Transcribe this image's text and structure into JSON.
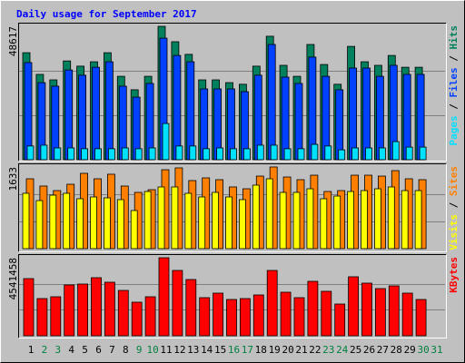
{
  "legend_separator": " / ",
  "chart_data": [
    {
      "type": "bar",
      "title": "Daily usage for September 2017",
      "ylim": [
        0,
        48617
      ],
      "yticks": [
        48617
      ],
      "series": [
        {
          "name": "Hits",
          "color": "#00805c",
          "values": [
            39000,
            31100,
            29100,
            36000,
            34100,
            35700,
            39000,
            30400,
            25500,
            30400,
            48617,
            43000,
            38400,
            29100,
            29100,
            28100,
            27500,
            34100,
            45000,
            34400,
            30400,
            42000,
            34700,
            27500,
            41300,
            35700,
            34400,
            38000,
            33700,
            33700,
            null
          ]
        },
        {
          "name": "Files",
          "color": "#0040ff",
          "values": [
            35400,
            28100,
            26800,
            32700,
            30800,
            33700,
            35700,
            26800,
            22800,
            27800,
            44300,
            38000,
            35700,
            25800,
            25800,
            25800,
            24800,
            30800,
            42000,
            30100,
            27800,
            37400,
            30400,
            25500,
            33400,
            33400,
            30400,
            34400,
            31100,
            31100,
            null
          ]
        },
        {
          "name": "Pages",
          "color": "#00e0ff",
          "values": [
            5000,
            5300,
            4300,
            4300,
            4000,
            4000,
            4000,
            4300,
            4000,
            4300,
            13200,
            5000,
            5000,
            4000,
            4300,
            4000,
            4000,
            5300,
            5300,
            4000,
            4000,
            5600,
            5000,
            3600,
            4300,
            4300,
            4300,
            6600,
            4600,
            4600,
            null
          ]
        }
      ]
    },
    {
      "type": "bar",
      "ylim": [
        0,
        1633
      ],
      "yticks": [
        1633
      ],
      "series": [
        {
          "name": "Sites",
          "color": "#ff8000",
          "values": [
            1397,
            1252,
            1161,
            1288,
            1506,
            1397,
            1488,
            1252,
            1125,
            1179,
            1578,
            1615,
            1361,
            1415,
            1379,
            1234,
            1197,
            1451,
            1633,
            1433,
            1379,
            1469,
            1143,
            1161,
            1469,
            1469,
            1451,
            1560,
            1397,
            1379,
            null
          ]
        },
        {
          "name": "Visits",
          "color": "#ffff00",
          "values": [
            1107,
            961,
            1070,
            1107,
            998,
            1034,
            1016,
            980,
            762,
            1143,
            1234,
            1234,
            1107,
            1034,
            1125,
            1034,
            980,
            1270,
            1397,
            1125,
            1125,
            1197,
            998,
            1052,
            1143,
            1161,
            1197,
            1234,
            1161,
            1161,
            null
          ]
        }
      ]
    },
    {
      "type": "bar",
      "ylim": [
        0,
        4541458
      ],
      "yticks": [
        4541458
      ],
      "categories": [
        "1",
        "2",
        "3",
        "4",
        "5",
        "6",
        "7",
        "8",
        "9",
        "10",
        "11",
        "12",
        "13",
        "14",
        "15",
        "16",
        "17",
        "18",
        "19",
        "20",
        "21",
        "22",
        "23",
        "24",
        "25",
        "26",
        "27",
        "28",
        "29",
        "30",
        "31"
      ],
      "label_colors": [
        "#000000",
        "#008040",
        "#008040",
        "#000000",
        "#000000",
        "#000000",
        "#000000",
        "#000000",
        "#008040",
        "#008040",
        "#000000",
        "#000000",
        "#000000",
        "#000000",
        "#000000",
        "#008040",
        "#008040",
        "#000000",
        "#000000",
        "#000000",
        "#000000",
        "#000000",
        "#008040",
        "#008040",
        "#000000",
        "#000000",
        "#000000",
        "#000000",
        "#000000",
        "#008040",
        "#008040"
      ],
      "series": [
        {
          "name": "KBytes",
          "color": "#ff0000",
          "values": [
            3327000,
            2165000,
            2271000,
            2957000,
            3010000,
            3380000,
            3116000,
            2640000,
            1954000,
            2271000,
            4541458,
            3802000,
            3274000,
            2218000,
            2482000,
            2112000,
            2165000,
            2376000,
            3802000,
            2535000,
            2218000,
            3168000,
            2588000,
            1848000,
            3433000,
            3063000,
            2746000,
            2904000,
            2482000,
            2112000,
            null
          ]
        }
      ]
    }
  ]
}
